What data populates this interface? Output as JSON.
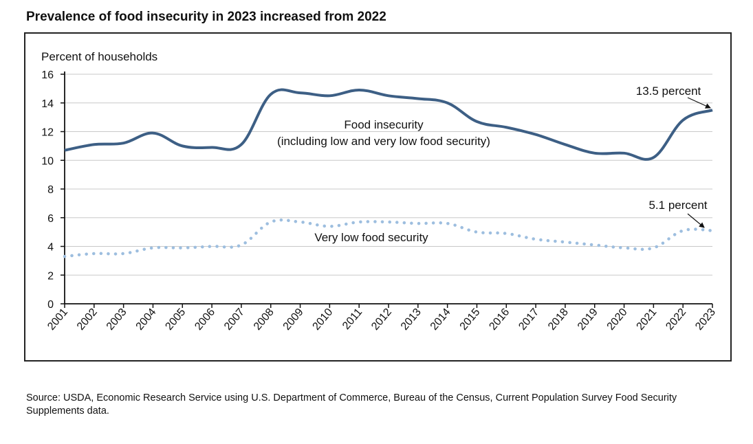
{
  "title": "Prevalence of food insecurity in 2023 increased from 2022",
  "source": "Source: USDA, Economic Research Service using U.S. Department of Commerce, Bureau of the Census, Current Population Survey Food Security Supplements data.",
  "colors": {
    "food_insecurity": "#3d5f85",
    "very_low": "#9dbedf",
    "grid": "#c8c8c8",
    "axis": "#111111"
  },
  "chart_data": {
    "type": "line",
    "title": "Prevalence of food insecurity in 2023 increased from 2022",
    "ylabel": "Percent of households",
    "xlabel": "",
    "ylim": [
      0,
      16
    ],
    "yticks": [
      "0",
      "2",
      "4",
      "6",
      "8",
      "10",
      "12",
      "14",
      "16"
    ],
    "grid": true,
    "categories": [
      "2001",
      "2002",
      "2003",
      "2004",
      "2005",
      "2006",
      "2007",
      "2008",
      "2009",
      "2010",
      "2011",
      "2012",
      "2013",
      "2014",
      "2015",
      "2016",
      "2017",
      "2018",
      "2019",
      "2020",
      "2021",
      "2022",
      "2023"
    ],
    "series": [
      {
        "label_line1": "Food insecurity",
        "label_line2": "(including low and very low food security)",
        "style": "solid",
        "values": [
          10.7,
          11.1,
          11.2,
          11.9,
          11.0,
          10.9,
          11.1,
          14.6,
          14.7,
          14.5,
          14.9,
          14.5,
          14.3,
          14.0,
          12.7,
          12.3,
          11.8,
          11.1,
          10.5,
          10.5,
          10.2,
          12.8,
          13.5
        ]
      },
      {
        "label_line1": "Very low food security",
        "style": "dotted",
        "values": [
          3.3,
          3.5,
          3.5,
          3.9,
          3.9,
          4.0,
          4.1,
          5.7,
          5.7,
          5.4,
          5.7,
          5.7,
          5.6,
          5.6,
          5.0,
          4.9,
          4.5,
          4.3,
          4.1,
          3.9,
          3.9,
          5.1,
          5.1
        ]
      }
    ],
    "annotations": [
      "13.5 percent",
      "5.1 percent"
    ]
  }
}
